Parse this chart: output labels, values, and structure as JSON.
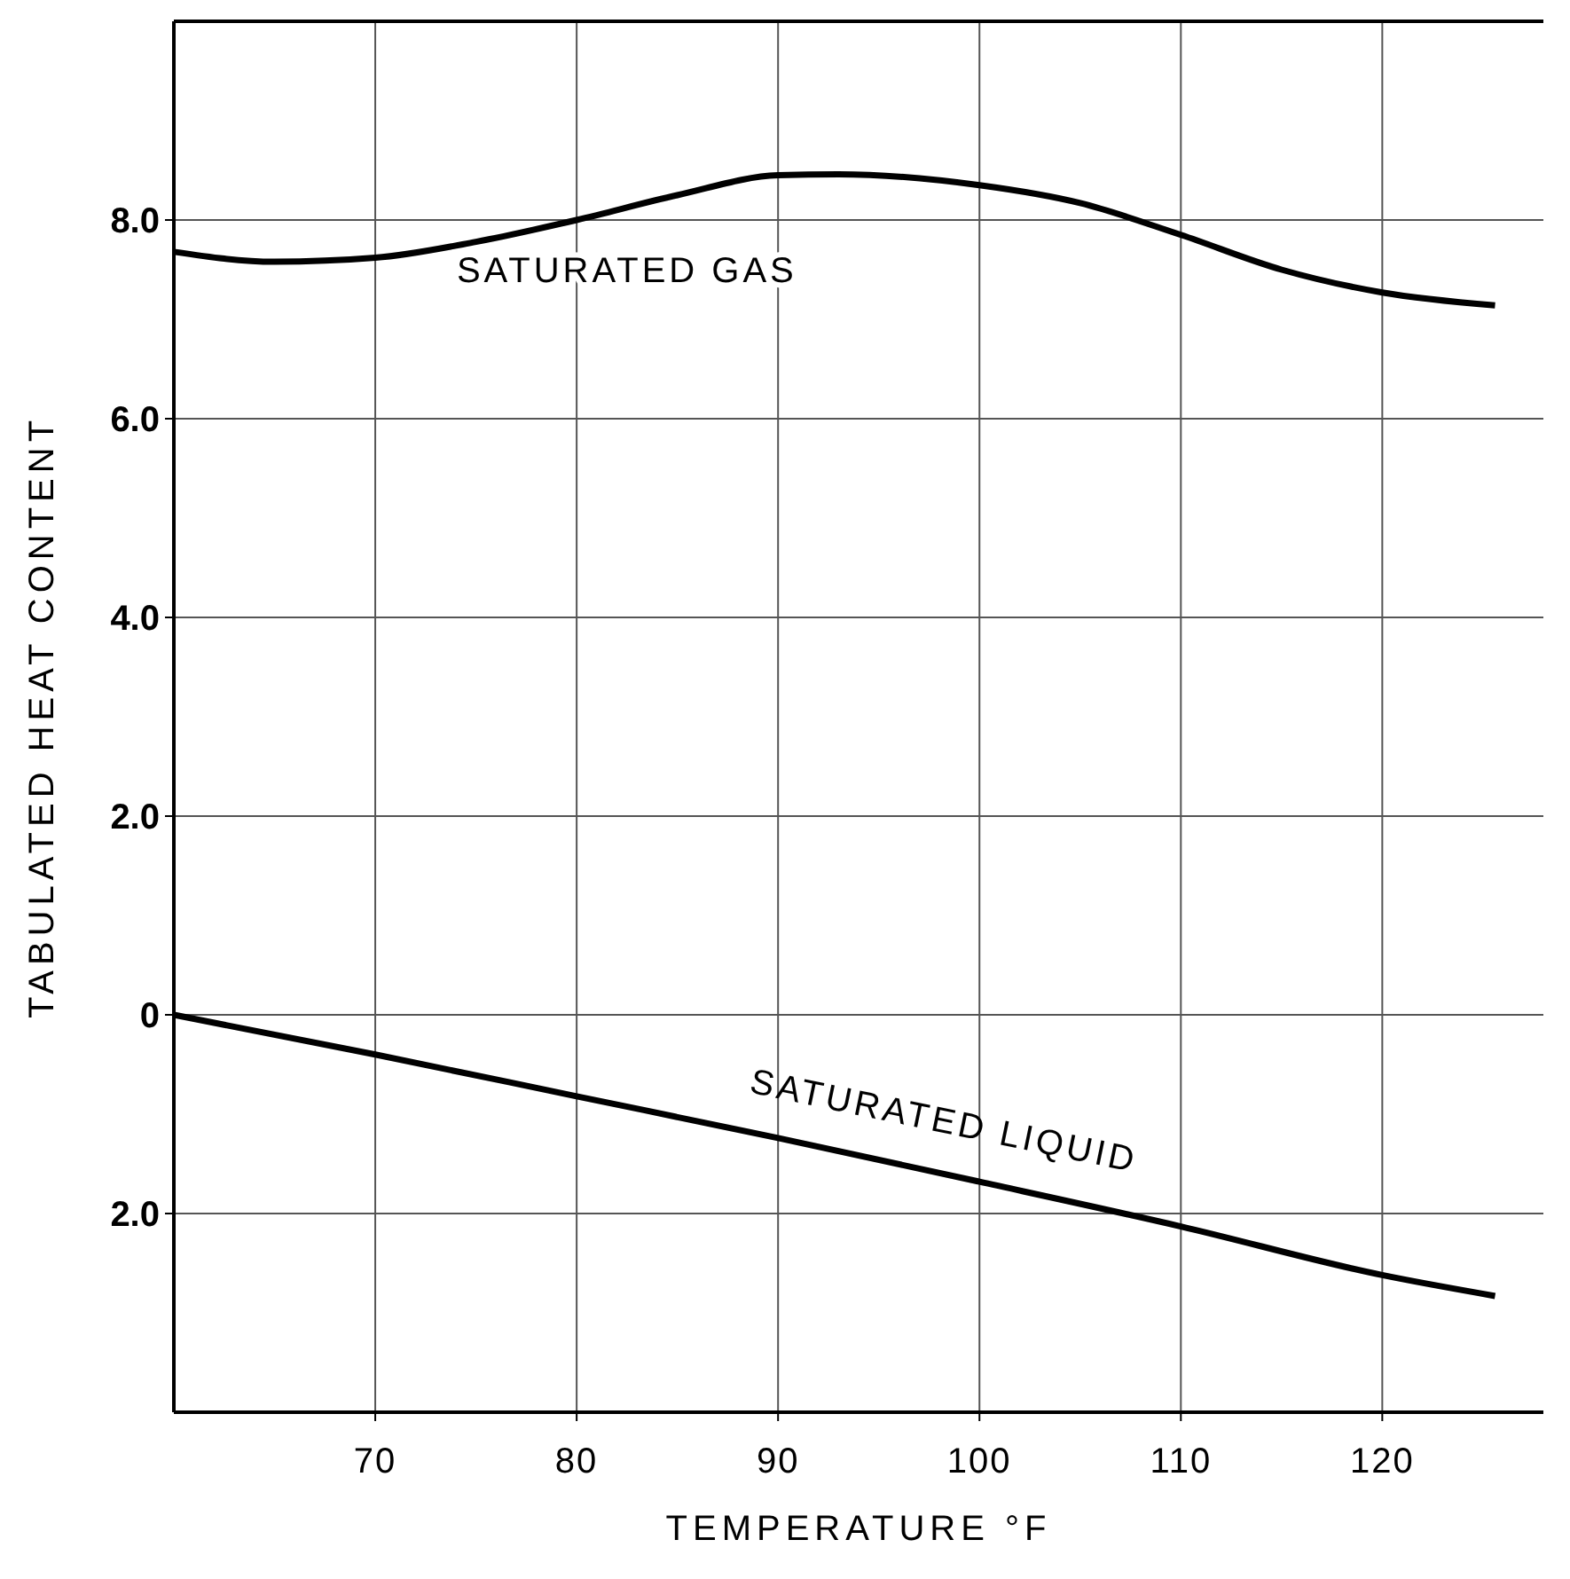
{
  "chart_data": {
    "type": "line",
    "xlabel": "TEMPERATURE °F",
    "ylabel": "TABULATED HEAT CONTENT",
    "xlim": [
      60,
      128
    ],
    "xticks": [
      70,
      80,
      90,
      100,
      110,
      120
    ],
    "ylim": [
      -4,
      10
    ],
    "yticks": [
      {
        "value": -2,
        "label": "2.0"
      },
      0,
      {
        "value": 2,
        "label": "2.0"
      },
      {
        "value": 4,
        "label": "4.0"
      },
      {
        "value": 6,
        "label": "6.0"
      },
      {
        "value": 8,
        "label": "8.0"
      }
    ],
    "grid": true,
    "legend": false,
    "marker": "none",
    "line_style": "solid",
    "series": [
      {
        "name": "SATURATED GAS",
        "color": "#000000",
        "x": [
          60,
          65,
          70,
          75,
          80,
          85,
          90,
          93,
          100,
          105,
          110,
          115,
          120,
          125.6
        ],
        "values": [
          7.68,
          7.58,
          7.62,
          7.78,
          8.0,
          8.25,
          8.45,
          8.46,
          8.35,
          8.17,
          7.85,
          7.5,
          7.27,
          7.14
        ]
      },
      {
        "name": "SATURATED LIQUID",
        "color": "#000000",
        "x": [
          60,
          70,
          80,
          90,
          100,
          110,
          120,
          125.6
        ],
        "values": [
          0,
          -0.4,
          -0.82,
          -1.24,
          -1.68,
          -2.13,
          -2.62,
          -2.83
        ]
      }
    ]
  }
}
